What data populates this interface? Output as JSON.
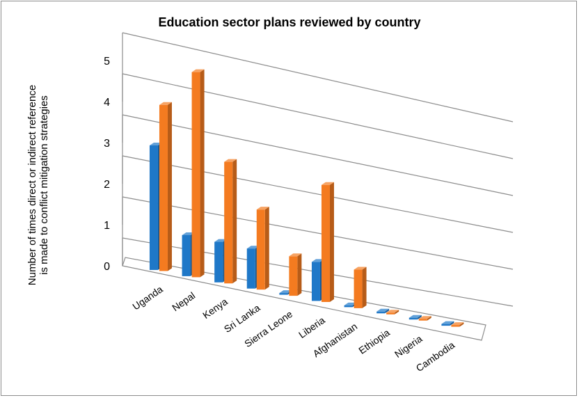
{
  "chart_data": {
    "type": "bar",
    "title": "Education sector plans reviewed by country",
    "ylabel": "Number of times direct or indirect reference is made to conflict mitigation strategies",
    "xlabel": "",
    "categories": [
      "Uganda",
      "Nepal",
      "Kenya",
      "Sri Lanka",
      "Sierra Leone",
      "Liberia",
      "Afghanistan",
      "Ethiopia",
      "Nigeria",
      "Cambodia"
    ],
    "series": [
      {
        "values": [
          3,
          1,
          1,
          1,
          0,
          1,
          0,
          0,
          0,
          0
        ],
        "color": "#1f78c8"
      },
      {
        "values": [
          4,
          5,
          3,
          2,
          1,
          3,
          1,
          0,
          0,
          0
        ],
        "color": "#f47b20"
      }
    ],
    "ylim": [
      0,
      5
    ],
    "yticks": [
      0,
      1,
      2,
      3,
      4,
      5
    ],
    "grid": true,
    "legend": "none",
    "style": "3d-clustered-column"
  }
}
